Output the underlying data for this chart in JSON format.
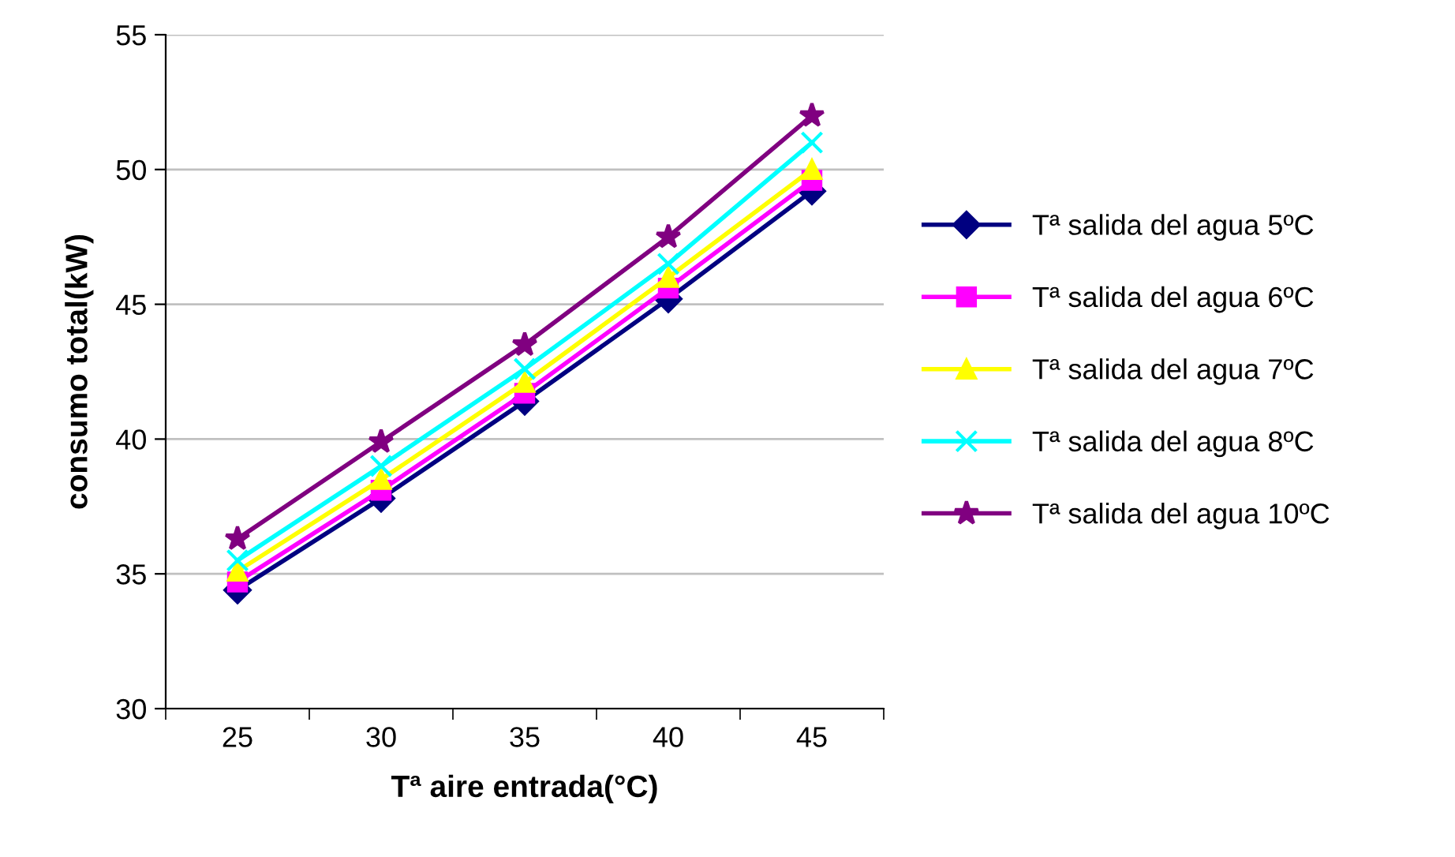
{
  "chart_data": {
    "type": "line",
    "xlabel": "Tª aire entrada(°C)",
    "ylabel": "consumo total(kW)",
    "categories": [
      "25",
      "30",
      "35",
      "40",
      "45"
    ],
    "ylim": [
      30,
      55
    ],
    "yticks": [
      30,
      35,
      40,
      45,
      50,
      55
    ],
    "grid": "y",
    "legend": "right",
    "line_style": "solid",
    "series": [
      {
        "name": "Tª salida del agua 5ºC",
        "color": "#000080",
        "marker": "diamond",
        "values": [
          34.4,
          37.8,
          41.4,
          45.2,
          49.2
        ]
      },
      {
        "name": "Tª salida del agua 6ºC",
        "color": "#ff00ff",
        "marker": "square",
        "values": [
          34.7,
          38.1,
          41.7,
          45.6,
          49.6
        ]
      },
      {
        "name": "Tª salida del agua 7ºC",
        "color": "#ffff00",
        "marker": "triangle",
        "values": [
          35.1,
          38.5,
          42.1,
          46.0,
          50.0
        ]
      },
      {
        "name": "Tª salida del agua 8ºC",
        "color": "#00ffff",
        "marker": "cross",
        "values": [
          35.5,
          39.0,
          42.6,
          46.5,
          51.0
        ]
      },
      {
        "name": "Tª salida del agua 10ºC",
        "color": "#800080",
        "marker": "star",
        "values": [
          36.3,
          39.9,
          43.5,
          47.5,
          52.0
        ]
      }
    ]
  }
}
